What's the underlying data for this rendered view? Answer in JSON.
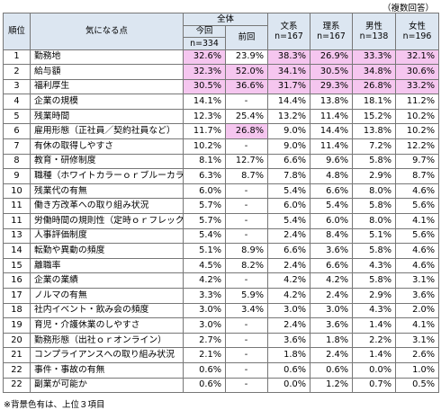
{
  "note_top": "（複数回答）",
  "note_bottom": "※背景色有は、上位３項目",
  "header": {
    "rank": "順位",
    "item": "気になる点",
    "overall": "全体",
    "current": "今回",
    "current_n": "n=334",
    "previous": "前回",
    "bunkei": "文系",
    "bunkei_n": "n=167",
    "rikei": "理系",
    "rikei_n": "n=167",
    "male": "男性",
    "male_n": "n=138",
    "female": "女性",
    "female_n": "n=196"
  },
  "highlight_color": "#f5c6ef",
  "rows": [
    {
      "rank": "1",
      "item": "勤務地",
      "cur": "32.6%",
      "prev": "23.9%",
      "bun": "38.3%",
      "ri": "26.9%",
      "male": "33.3%",
      "female": "32.1%",
      "hl": [
        1,
        0,
        1,
        1,
        1,
        1
      ]
    },
    {
      "rank": "2",
      "item": "給与額",
      "cur": "32.3%",
      "prev": "52.0%",
      "bun": "34.1%",
      "ri": "30.5%",
      "male": "34.8%",
      "female": "30.6%",
      "hl": [
        1,
        1,
        1,
        1,
        1,
        1
      ]
    },
    {
      "rank": "3",
      "item": "福利厚生",
      "cur": "30.5%",
      "prev": "36.6%",
      "bun": "31.7%",
      "ri": "29.3%",
      "male": "26.8%",
      "female": "33.2%",
      "hl": [
        1,
        1,
        1,
        1,
        1,
        1
      ]
    },
    {
      "rank": "4",
      "item": "企業の規模",
      "cur": "14.1%",
      "prev": "-",
      "bun": "14.4%",
      "ri": "13.8%",
      "male": "18.1%",
      "female": "11.2%",
      "hl": [
        0,
        0,
        0,
        0,
        0,
        0
      ]
    },
    {
      "rank": "5",
      "item": "残業時間",
      "cur": "12.3%",
      "prev": "25.4%",
      "bun": "13.2%",
      "ri": "11.4%",
      "male": "15.2%",
      "female": "10.2%",
      "hl": [
        0,
        0,
        0,
        0,
        0,
        0
      ]
    },
    {
      "rank": "6",
      "item": "雇用形態（正社員／契約社員など）",
      "cur": "11.7%",
      "prev": "26.8%",
      "bun": "9.0%",
      "ri": "14.4%",
      "male": "13.8%",
      "female": "10.2%",
      "hl": [
        0,
        1,
        0,
        0,
        0,
        0
      ]
    },
    {
      "rank": "7",
      "item": "有休の取得しやすさ",
      "cur": "10.2%",
      "prev": "-",
      "bun": "9.0%",
      "ri": "11.4%",
      "male": "7.2%",
      "female": "12.2%",
      "hl": [
        0,
        0,
        0,
        0,
        0,
        0
      ]
    },
    {
      "rank": "8",
      "item": "教育・研修制度",
      "cur": "8.1%",
      "prev": "12.7%",
      "bun": "6.6%",
      "ri": "9.6%",
      "male": "5.8%",
      "female": "9.7%",
      "hl": [
        0,
        0,
        0,
        0,
        0,
        0
      ]
    },
    {
      "rank": "9",
      "item": "職種（ホワイトカラーｏｒブルーカラー）",
      "cur": "6.3%",
      "prev": "8.7%",
      "bun": "7.8%",
      "ri": "4.8%",
      "male": "2.9%",
      "female": "8.7%",
      "hl": [
        0,
        0,
        0,
        0,
        0,
        0
      ]
    },
    {
      "rank": "10",
      "item": "残業代の有無",
      "cur": "6.0%",
      "prev": "-",
      "bun": "5.4%",
      "ri": "6.6%",
      "male": "8.0%",
      "female": "4.6%",
      "hl": [
        0,
        0,
        0,
        0,
        0,
        0
      ]
    },
    {
      "rank": "11",
      "item": "働き方改革への取り組み状況",
      "cur": "5.7%",
      "prev": "-",
      "bun": "6.0%",
      "ri": "5.4%",
      "male": "5.8%",
      "female": "5.6%",
      "hl": [
        0,
        0,
        0,
        0,
        0,
        0
      ]
    },
    {
      "rank": "11",
      "item": "労働時間の規則性（定時ｏｒフレックス）",
      "cur": "5.7%",
      "prev": "-",
      "bun": "5.4%",
      "ri": "6.0%",
      "male": "8.0%",
      "female": "4.1%",
      "hl": [
        0,
        0,
        0,
        0,
        0,
        0
      ]
    },
    {
      "rank": "13",
      "item": "人事評価制度",
      "cur": "5.4%",
      "prev": "-",
      "bun": "2.4%",
      "ri": "8.4%",
      "male": "5.1%",
      "female": "5.6%",
      "hl": [
        0,
        0,
        0,
        0,
        0,
        0
      ]
    },
    {
      "rank": "14",
      "item": "転勤や異動の頻度",
      "cur": "5.1%",
      "prev": "8.9%",
      "bun": "6.6%",
      "ri": "3.6%",
      "male": "5.8%",
      "female": "4.6%",
      "hl": [
        0,
        0,
        0,
        0,
        0,
        0
      ]
    },
    {
      "rank": "15",
      "item": "離職率",
      "cur": "4.5%",
      "prev": "8.2%",
      "bun": "2.4%",
      "ri": "6.6%",
      "male": "4.3%",
      "female": "4.6%",
      "hl": [
        0,
        0,
        0,
        0,
        0,
        0
      ]
    },
    {
      "rank": "16",
      "item": "企業の業績",
      "cur": "4.2%",
      "prev": "-",
      "bun": "4.2%",
      "ri": "4.2%",
      "male": "5.8%",
      "female": "3.1%",
      "hl": [
        0,
        0,
        0,
        0,
        0,
        0
      ]
    },
    {
      "rank": "17",
      "item": "ノルマの有無",
      "cur": "3.3%",
      "prev": "5.9%",
      "bun": "4.2%",
      "ri": "2.4%",
      "male": "2.9%",
      "female": "3.6%",
      "hl": [
        0,
        0,
        0,
        0,
        0,
        0
      ]
    },
    {
      "rank": "18",
      "item": "社内イベント・飲み会の頻度",
      "cur": "3.0%",
      "prev": "3.4%",
      "bun": "3.0%",
      "ri": "3.0%",
      "male": "4.3%",
      "female": "2.0%",
      "hl": [
        0,
        0,
        0,
        0,
        0,
        0
      ]
    },
    {
      "rank": "19",
      "item": "育児・介護休業のしやすさ",
      "cur": "3.0%",
      "prev": "-",
      "bun": "2.4%",
      "ri": "3.6%",
      "male": "1.4%",
      "female": "4.1%",
      "hl": [
        0,
        0,
        0,
        0,
        0,
        0
      ]
    },
    {
      "rank": "20",
      "item": "勤務形態（出社ｏｒオンライン）",
      "cur": "2.7%",
      "prev": "-",
      "bun": "3.6%",
      "ri": "1.8%",
      "male": "2.2%",
      "female": "3.1%",
      "hl": [
        0,
        0,
        0,
        0,
        0,
        0
      ]
    },
    {
      "rank": "21",
      "item": "コンプライアンスへの取り組み状況",
      "cur": "2.1%",
      "prev": "-",
      "bun": "1.8%",
      "ri": "2.4%",
      "male": "1.4%",
      "female": "2.6%",
      "hl": [
        0,
        0,
        0,
        0,
        0,
        0
      ]
    },
    {
      "rank": "22",
      "item": "事件・事故の有無",
      "cur": "0.6%",
      "prev": "-",
      "bun": "0.6%",
      "ri": "0.6%",
      "male": "0.0%",
      "female": "1.0%",
      "hl": [
        0,
        0,
        0,
        0,
        0,
        0
      ]
    },
    {
      "rank": "22",
      "item": "副業が可能か",
      "cur": "0.6%",
      "prev": "-",
      "bun": "0.0%",
      "ri": "1.2%",
      "male": "0.7%",
      "female": "0.5%",
      "hl": [
        0,
        0,
        0,
        0,
        0,
        0
      ]
    }
  ]
}
